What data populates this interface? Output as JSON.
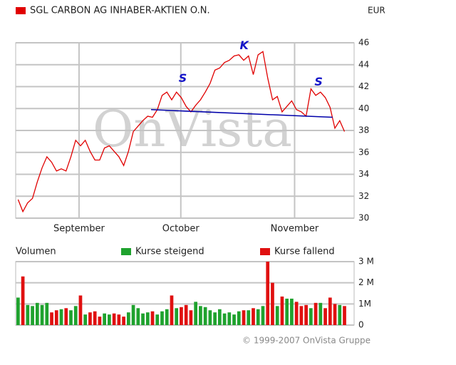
{
  "chart_data": [
    {
      "type": "line",
      "series": [
        {
          "name": "SGL CARBON AG INHABER-AKTIEN O.N.",
          "color": "#e00000",
          "values": [
            31.7,
            30.6,
            31.4,
            31.8,
            33.3,
            34.6,
            35.6,
            35.1,
            34.3,
            34.5,
            34.3,
            35.6,
            37.1,
            36.6,
            37.1,
            36.1,
            35.3,
            35.3,
            36.4,
            36.6,
            36.1,
            35.6,
            34.8,
            36.1,
            37.9,
            38.4,
            38.9,
            39.3,
            39.2,
            39.9,
            41.2,
            41.5,
            40.8,
            41.5,
            41.0,
            40.2,
            39.7,
            40.3,
            40.8,
            41.5,
            42.3,
            43.5,
            43.7,
            44.2,
            44.4,
            44.8,
            44.9,
            44.4,
            44.8,
            43.1,
            44.9,
            45.2,
            42.8,
            40.8,
            41.1,
            39.7,
            40.2,
            40.7,
            39.9,
            39.7,
            39.3,
            41.8,
            41.2,
            41.5,
            41.0,
            40.1,
            38.2,
            38.9,
            37.9
          ]
        }
      ],
      "currency": "EUR",
      "watermark": "OnVista",
      "xlim": [
        -0.5,
        70
      ],
      "xticks": [
        {
          "value": 12.7,
          "label": "September"
        },
        {
          "value": 33.9,
          "label": "October"
        },
        {
          "value": 57.6,
          "label": "November"
        }
      ],
      "ylim": [
        30,
        46
      ],
      "yticks": [
        30,
        32,
        34,
        36,
        38,
        40,
        42,
        44,
        46
      ],
      "grid": true,
      "trendline": {
        "x": [
          27.7,
          65.5
        ],
        "y": [
          39.9,
          39.2
        ],
        "color": "#0000aa"
      },
      "annotations": [
        {
          "text": "S",
          "x": 34.3,
          "y": 42.7
        },
        {
          "text": "K",
          "x": 47.1,
          "y": 45.7
        },
        {
          "text": "S",
          "x": 62.6,
          "y": 42.4
        }
      ]
    },
    {
      "type": "bar",
      "label": "Volumen",
      "legend": [
        {
          "name": "Kurse steigend",
          "color": "#1fa22e"
        },
        {
          "name": "Kurse fallend",
          "color": "#e01010"
        }
      ],
      "values": [
        1300000,
        2300000,
        950000,
        900000,
        1050000,
        950000,
        1050000,
        600000,
        700000,
        750000,
        800000,
        700000,
        900000,
        1400000,
        500000,
        600000,
        650000,
        400000,
        550000,
        500000,
        550000,
        500000,
        400000,
        600000,
        950000,
        800000,
        550000,
        600000,
        650000,
        500000,
        650000,
        750000,
        1400000,
        800000,
        850000,
        950000,
        700000,
        1100000,
        900000,
        850000,
        700000,
        600000,
        750000,
        550000,
        600000,
        500000,
        650000,
        700000,
        700000,
        800000,
        750000,
        900000,
        3000000,
        2000000,
        900000,
        1350000,
        1250000,
        1250000,
        1100000,
        900000,
        950000,
        800000,
        1050000,
        1050000,
        800000,
        1300000,
        1000000,
        950000,
        900000
      ],
      "colors": [
        "#1fa22e",
        "#e01010",
        "#1fa22e",
        "#1fa22e",
        "#1fa22e",
        "#1fa22e",
        "#1fa22e",
        "#e01010",
        "#e01010",
        "#1fa22e",
        "#e01010",
        "#1fa22e",
        "#1fa22e",
        "#e01010",
        "#1fa22e",
        "#e01010",
        "#e01010",
        "#e01010",
        "#1fa22e",
        "#1fa22e",
        "#e01010",
        "#e01010",
        "#e01010",
        "#1fa22e",
        "#1fa22e",
        "#1fa22e",
        "#1fa22e",
        "#1fa22e",
        "#e01010",
        "#1fa22e",
        "#1fa22e",
        "#1fa22e",
        "#e01010",
        "#1fa22e",
        "#e01010",
        "#e01010",
        "#e01010",
        "#1fa22e",
        "#1fa22e",
        "#1fa22e",
        "#1fa22e",
        "#1fa22e",
        "#1fa22e",
        "#1fa22e",
        "#1fa22e",
        "#1fa22e",
        "#1fa22e",
        "#e01010",
        "#1fa22e",
        "#e01010",
        "#1fa22e",
        "#1fa22e",
        "#e01010",
        "#e01010",
        "#1fa22e",
        "#e01010",
        "#1fa22e",
        "#1fa22e",
        "#e01010",
        "#e01010",
        "#e01010",
        "#1fa22e",
        "#e01010",
        "#1fa22e",
        "#e01010",
        "#e01010",
        "#e01010",
        "#1fa22e",
        "#e01010"
      ],
      "xlim": [
        -0.5,
        70
      ],
      "ylim": [
        0,
        3000000
      ],
      "yticks": [
        0,
        {
          "value": 1000000,
          "label": "1M"
        },
        {
          "value": 2000000,
          "label": "2 M"
        },
        {
          "value": 3000000,
          "label": "3 M"
        }
      ],
      "grid": true,
      "copyright": "© 1999-2007 OnVista Gruppe"
    }
  ]
}
